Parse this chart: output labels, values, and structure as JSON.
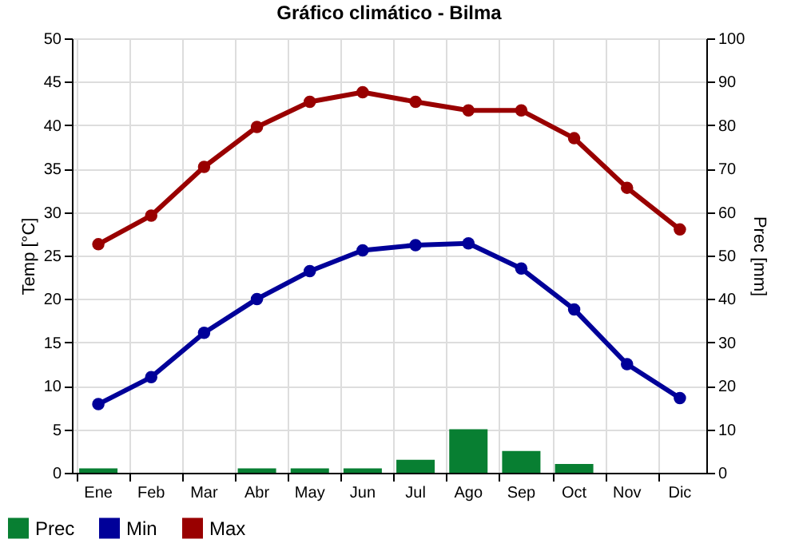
{
  "chart_data": {
    "type": "line",
    "title": "Gráfico climático - Bilma",
    "ylabel": "Temp [°C]",
    "y2label": "Prec [mm]",
    "categories": [
      "Ene",
      "Feb",
      "Mar",
      "Abr",
      "May",
      "Jun",
      "Jul",
      "Ago",
      "Sep",
      "Oct",
      "Nov",
      "Dic"
    ],
    "series": [
      {
        "name": "Prec",
        "type": "bar",
        "axis": "y2",
        "color": "#087f32",
        "values": [
          1,
          0,
          0,
          1,
          1,
          1,
          3,
          10,
          5,
          2,
          0,
          0
        ]
      },
      {
        "name": "Min",
        "color": "#000099",
        "values": [
          7.9,
          11,
          16.1,
          20,
          23.2,
          25.6,
          26.2,
          26.4,
          23.5,
          18.8,
          12.5,
          8.6
        ]
      },
      {
        "name": "Max",
        "color": "#990000",
        "values": [
          26.3,
          29.6,
          35.2,
          39.8,
          42.7,
          43.8,
          42.7,
          41.7,
          41.7,
          38.5,
          32.8,
          28
        ]
      }
    ],
    "ylim": [
      0,
      50
    ],
    "yticks": [
      0,
      5,
      10,
      15,
      20,
      25,
      30,
      35,
      40,
      45,
      50
    ],
    "y2lim": [
      0,
      100
    ],
    "y2ticks": [
      0,
      10,
      20,
      30,
      40,
      50,
      60,
      70,
      80,
      90,
      100
    ],
    "grid": true,
    "legend": "bottom left",
    "marker": "circle",
    "line_style": "solid"
  }
}
